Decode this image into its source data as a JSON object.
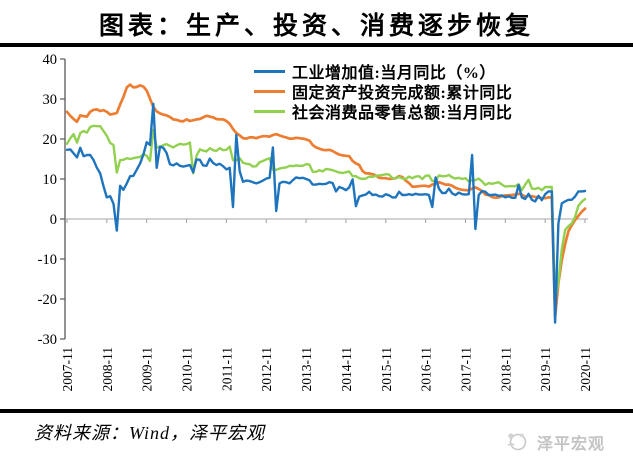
{
  "page": {
    "title": "图表：生产、投资、消费逐步恢复",
    "source_note": "资料来源：Wind，泽平宏观",
    "brand_name": "泽平宏观"
  },
  "chart_data": {
    "type": "line",
    "title": "图表：生产、投资、消费逐步恢复",
    "x_unit": "month",
    "x_range": [
      "2007-11",
      "2020-11"
    ],
    "x_tick_labels": [
      "2007-11",
      "2008-11",
      "2009-11",
      "2010-11",
      "2011-11",
      "2012-11",
      "2013-11",
      "2014-11",
      "2015-11",
      "2016-11",
      "2017-11",
      "2018-11",
      "2019-11",
      "2020-11"
    ],
    "ylim": [
      -30,
      40
    ],
    "y_ticks": [
      40,
      30,
      20,
      10,
      0,
      -10,
      -20,
      -30
    ],
    "grid": false,
    "legend_position": "top-center-inside",
    "axis_color": "#595959",
    "zero_line_color": "#a6a6a6",
    "series": [
      {
        "name": "工业增加值:当月同比（%）",
        "color": "#1f74be",
        "values": [
          17.3,
          17.4,
          16.4,
          15.4,
          17.8,
          15.7,
          16,
          16,
          14.7,
          12.8,
          11.4,
          8.2,
          5.4,
          5.7,
          3.8,
          -2.9,
          8.3,
          7.3,
          8.9,
          10.7,
          10.8,
          12.3,
          13.9,
          16.1,
          19.2,
          18.5,
          28.8,
          12.8,
          18.1,
          17.8,
          16.5,
          13.7,
          13.4,
          13.9,
          13.3,
          13.1,
          13.3,
          13.5,
          11.7,
          14.9,
          14.8,
          13.4,
          13.3,
          15.1,
          14,
          13.5,
          13.8,
          13.2,
          12.4,
          12.8,
          3,
          21,
          11.9,
          9.3,
          9.6,
          9.5,
          9.2,
          8.9,
          9.2,
          9.6,
          10.1,
          10.3,
          17.9,
          2,
          8.9,
          9.3,
          9.2,
          8.9,
          9.7,
          10.4,
          10.2,
          10.3,
          10,
          9.7,
          8.6,
          8.6,
          8.8,
          8.7,
          8.8,
          9.2,
          9,
          6.9,
          8,
          7.7,
          7.2,
          7.9,
          9.9,
          3.2,
          5.6,
          5.9,
          6.1,
          6.8,
          6,
          6.1,
          5.7,
          5.6,
          6.2,
          5.9,
          5.4,
          5.4,
          6.8,
          6,
          6,
          6.2,
          6,
          6.3,
          6.1,
          6.1,
          6.2,
          6,
          3,
          10.4,
          7.6,
          6.5,
          6.5,
          7.6,
          6.4,
          6,
          6.6,
          6.2,
          6.1,
          6.2,
          16,
          -2.5,
          6,
          7,
          6.8,
          6,
          6,
          6.1,
          5.8,
          5.9,
          5.4,
          5.7,
          5.3,
          5.3,
          8.5,
          5.4,
          5,
          6.3,
          4.8,
          4.4,
          5.8,
          4.7,
          6.2,
          6.9,
          6.9,
          -25.9,
          -1.1,
          3.9,
          4.4,
          4.8,
          4.8,
          5.6,
          6.9,
          6.9,
          7
        ]
      },
      {
        "name": "固定资产投资完成额:累计同比",
        "color": "#ed7d31",
        "values": [
          26.8,
          25.8,
          25,
          24.3,
          25.9,
          25.7,
          25.6,
          26.8,
          27.3,
          27.4,
          27,
          27.2,
          26.8,
          26.1,
          26.3,
          26.5,
          28.6,
          30.5,
          32.9,
          33.6,
          32.9,
          33,
          33.4,
          33.1,
          32.1,
          30.1,
          28,
          26.9,
          26.4,
          26.1,
          25.9,
          25.5,
          24.9,
          24.8,
          24.5,
          24.4,
          24.9,
          24.5,
          24.7,
          24.9,
          25,
          25.4,
          25.8,
          25.6,
          25.4,
          25,
          24.9,
          24.9,
          24.5,
          23.8,
          22.5,
          21.5,
          20.9,
          20.2,
          20.1,
          20.4,
          20.4,
          20.2,
          20.5,
          20.7,
          20.7,
          20.6,
          21,
          21.2,
          20.9,
          20.6,
          20.4,
          20.1,
          20.1,
          20.3,
          20.2,
          20.1,
          19.9,
          19.6,
          18.5,
          17.9,
          17.6,
          17.3,
          17.2,
          17.3,
          17,
          16.5,
          16.1,
          15.9,
          15.8,
          15.7,
          14.5,
          13.9,
          13.5,
          12,
          11.4,
          11.4,
          11.2,
          10.9,
          10.3,
          10.2,
          10.2,
          10,
          10.1,
          10.2,
          10.7,
          10.5,
          9.6,
          9,
          8.1,
          8.1,
          8.2,
          8.3,
          8.3,
          8.1,
          8.6,
          8.9,
          9.2,
          8.9,
          8.6,
          8.6,
          8.3,
          7.8,
          7.5,
          7.3,
          7.2,
          7.2,
          7.6,
          7.9,
          7.5,
          7,
          6.1,
          6,
          5.5,
          5.3,
          5.4,
          5.7,
          5.9,
          5.9,
          6,
          6.1,
          6.3,
          6.1,
          5.6,
          5.8,
          5.7,
          5.5,
          5.4,
          5.2,
          5.2,
          5.4,
          5.4,
          -24.5,
          -16.1,
          -10.3,
          -6.3,
          -3.1,
          -1.6,
          -0.3,
          0.8,
          1.8,
          2.6
        ]
      },
      {
        "name": "社会消费品零售总额:当月同比",
        "color": "#92d050",
        "values": [
          18.8,
          20.2,
          21.2,
          19.1,
          21.5,
          22,
          21.6,
          23,
          23.3,
          23.2,
          23.2,
          22,
          20.8,
          19,
          18.5,
          11.6,
          14.7,
          14.8,
          15.2,
          15,
          15.2,
          15.4,
          15.5,
          16.2,
          15.8,
          14.5,
          22.3,
          17.9,
          18,
          18.5,
          18.7,
          18.3,
          17.9,
          18.4,
          18.8,
          18.6,
          18.7,
          19.1,
          11.4,
          15.8,
          17.4,
          17.1,
          16.9,
          17.7,
          17.2,
          17,
          17.7,
          17.2,
          17.3,
          18.1,
          14.7,
          14.7,
          15.2,
          14.1,
          13.8,
          13.7,
          13.1,
          13.2,
          14.2,
          14.5,
          14.9,
          15.2,
          12.3,
          12.3,
          12.6,
          12.8,
          12.9,
          13.3,
          13.2,
          13.4,
          13.3,
          13.3,
          13.7,
          13.6,
          11.8,
          11.8,
          12.2,
          11.9,
          12.5,
          12.4,
          12.2,
          11.9,
          11.6,
          11.5,
          11.7,
          11.9,
          10.7,
          10.7,
          10.2,
          10,
          10.1,
          10.6,
          10.5,
          10.8,
          10.9,
          11,
          11.2,
          11.1,
          10.2,
          10.2,
          10.5,
          10.1,
          10,
          10.6,
          10.2,
          10.6,
          10.7,
          10,
          10.8,
          10.9,
          9.5,
          9.5,
          10.9,
          10.7,
          10.7,
          11,
          10.4,
          10.1,
          10.3,
          10,
          10.2,
          9.4,
          9.7,
          9.7,
          10.1,
          9.4,
          8.5,
          9,
          8.8,
          9,
          9.2,
          8.6,
          8.1,
          8.2,
          8.2,
          8.2,
          8.7,
          7.2,
          8.6,
          9.8,
          7.6,
          7.5,
          7.8,
          7.2,
          8,
          8,
          8,
          -20.5,
          -15.8,
          -7.5,
          -2.8,
          -1.8,
          -1.1,
          0.5,
          3.3,
          4.3,
          5
        ]
      }
    ]
  }
}
